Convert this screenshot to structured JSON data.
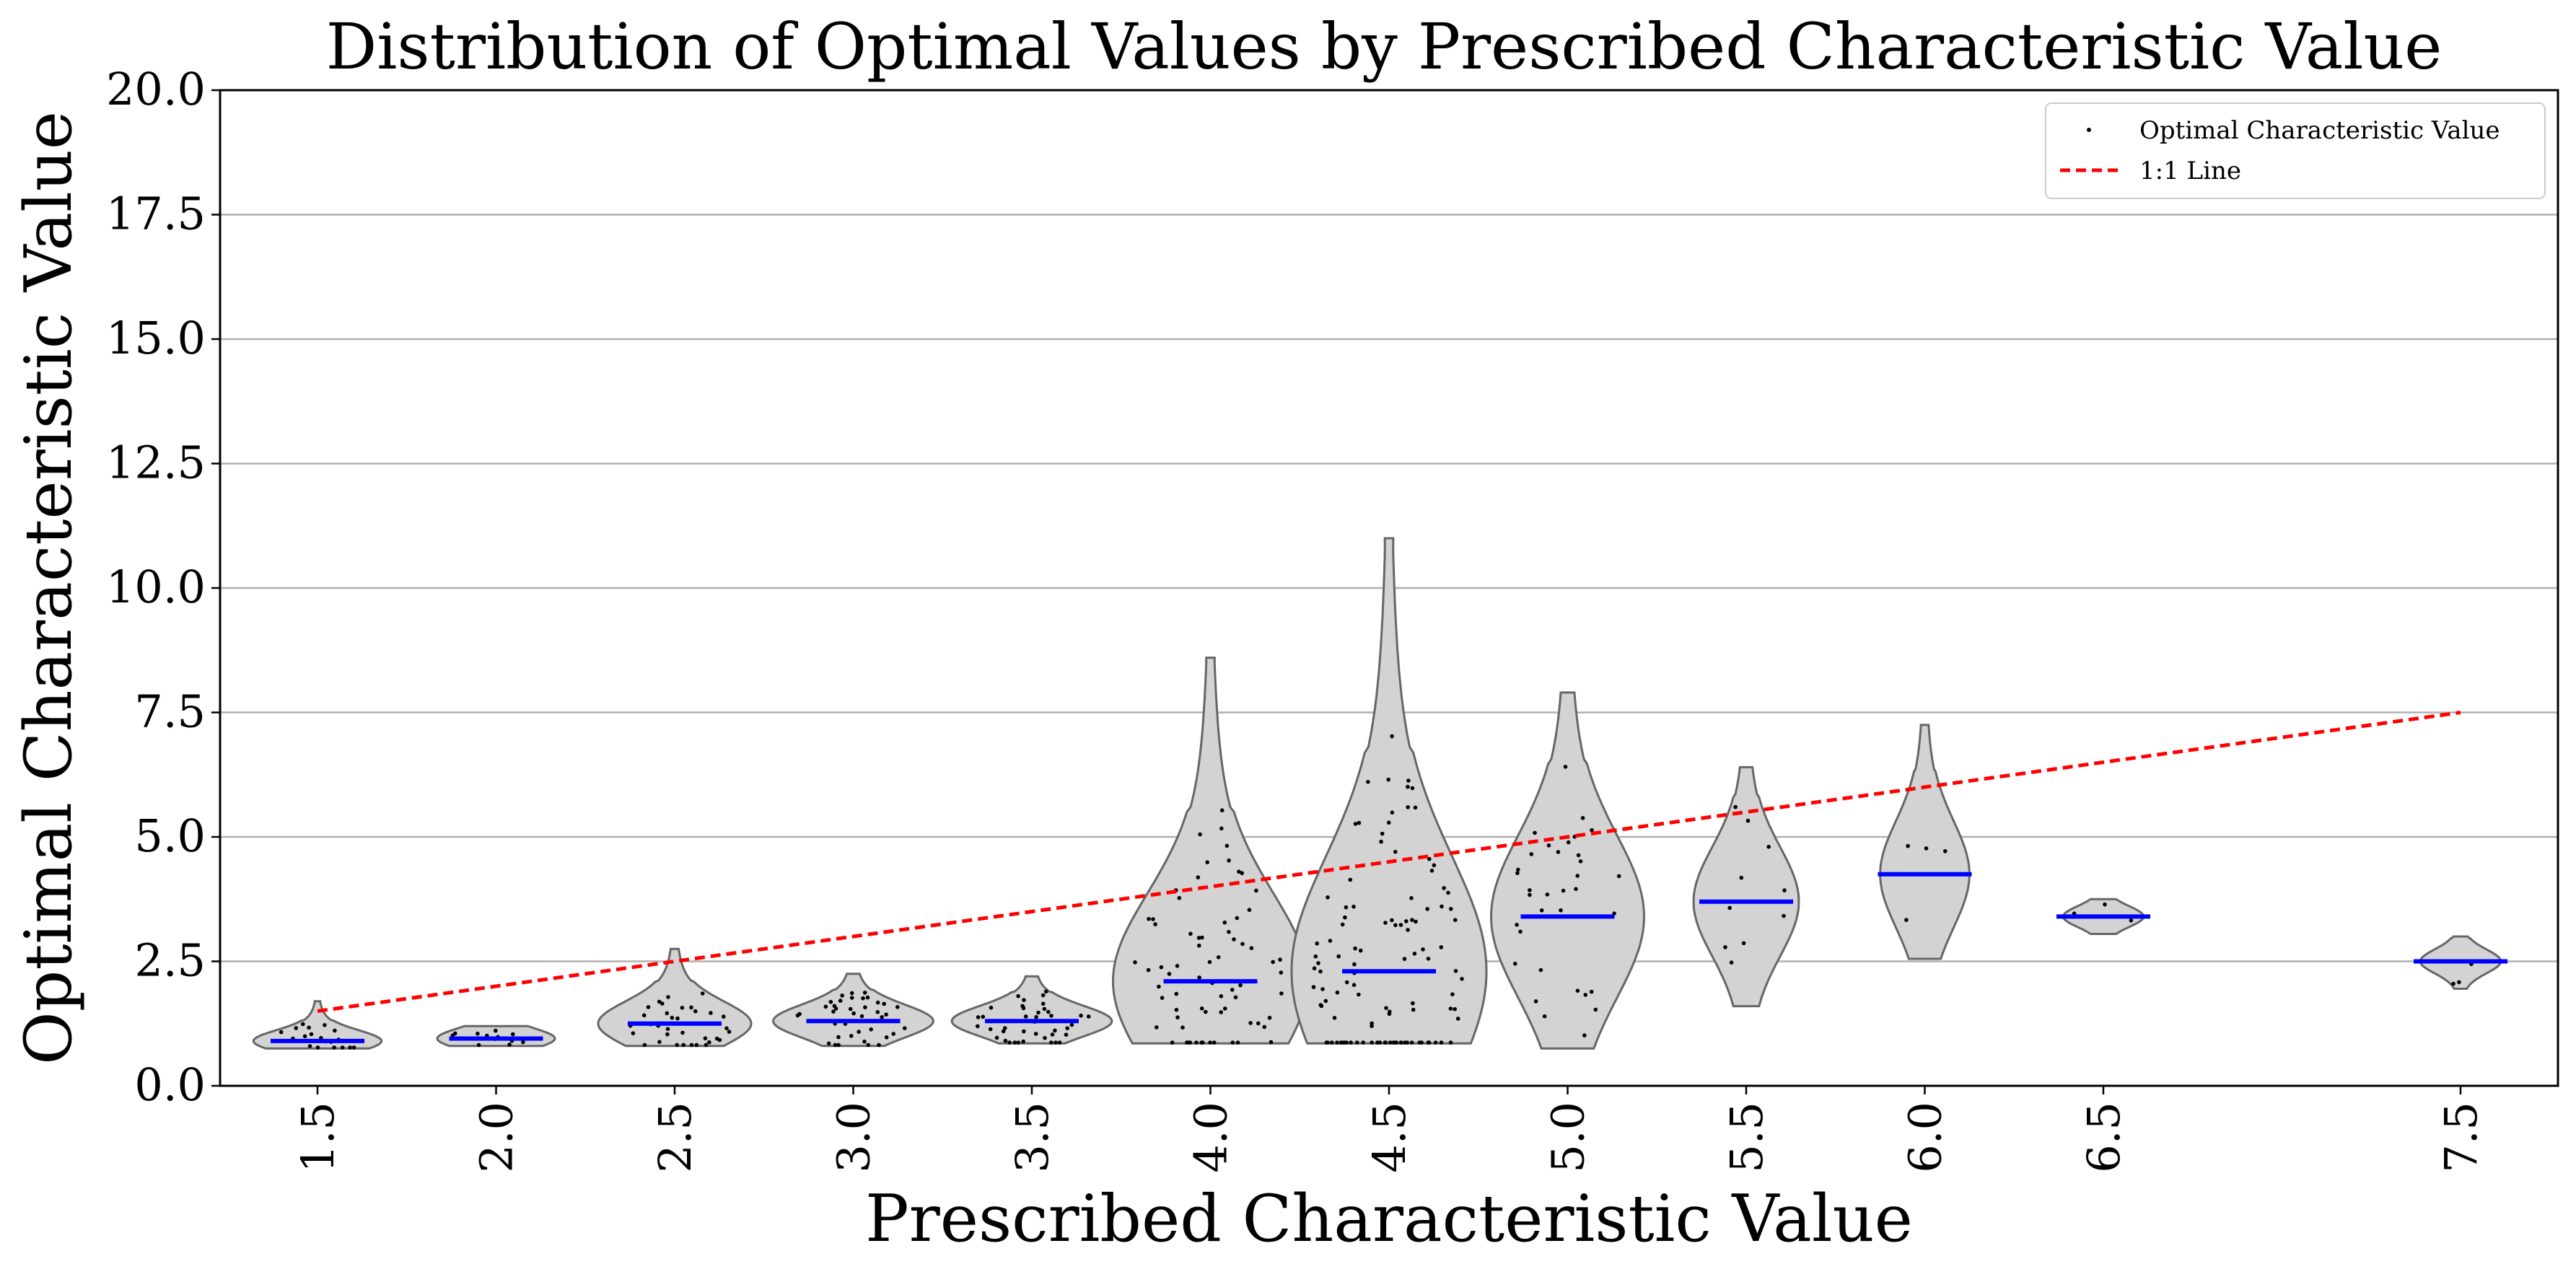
{
  "chart_data": {
    "type": "violin",
    "title": "Distribution of Optimal Values by Prescribed Characteristic Value",
    "xlabel": "Prescribed Characteristic Value",
    "ylabel": "Optimal Characteristic Value",
    "ylim": [
      0,
      20
    ],
    "yticks": [
      "0.0",
      "2.5",
      "5.0",
      "7.5",
      "10.0",
      "12.5",
      "15.0",
      "17.5",
      "20.0"
    ],
    "grid": "horizontal",
    "legend_position": "top-right",
    "legend": [
      {
        "label": "Optimal Characteristic Value",
        "marker": "dot"
      },
      {
        "label": "1:1 Line",
        "marker": "dashed-line"
      }
    ],
    "colors": {
      "violin_fill": "#d3d3d3",
      "violin_edge": "#666666",
      "median": "#0000ff",
      "reference_line": "#ff0000",
      "points": "#000000",
      "grid": "#b0b0b0"
    },
    "categories": [
      "1.5",
      "2.0",
      "2.5",
      "3.0",
      "3.5",
      "4.0",
      "4.5",
      "5.0",
      "5.5",
      "6.0",
      "6.5",
      "7.5"
    ],
    "violins": [
      {
        "category": "1.5",
        "min": 0.75,
        "max": 1.7,
        "median": 0.9,
        "n": 20
      },
      {
        "category": "2.0",
        "min": 0.8,
        "max": 1.2,
        "median": 0.95,
        "n": 15
      },
      {
        "category": "2.5",
        "min": 0.8,
        "max": 2.75,
        "median": 1.25,
        "n": 35
      },
      {
        "category": "3.0",
        "min": 0.8,
        "max": 2.25,
        "median": 1.3,
        "n": 40
      },
      {
        "category": "3.5",
        "min": 0.85,
        "max": 2.2,
        "median": 1.3,
        "n": 40
      },
      {
        "category": "4.0",
        "min": 0.85,
        "max": 8.6,
        "median": 2.1,
        "n": 70
      },
      {
        "category": "4.5",
        "min": 0.85,
        "max": 11.0,
        "median": 2.3,
        "n": 110
      },
      {
        "category": "5.0",
        "min": 0.75,
        "max": 7.9,
        "median": 3.4,
        "n": 35
      },
      {
        "category": "5.5",
        "min": 1.6,
        "max": 6.4,
        "median": 3.7,
        "n": 10
      },
      {
        "category": "6.0",
        "min": 2.55,
        "max": 7.25,
        "median": 4.25,
        "n": 5
      },
      {
        "category": "6.5",
        "min": 3.05,
        "max": 3.75,
        "median": 3.4,
        "n": 3
      },
      {
        "category": "7.5",
        "min": 1.95,
        "max": 3.0,
        "median": 2.5,
        "n": 3
      }
    ],
    "reference_line": {
      "label": "1:1 Line",
      "x": [
        1.5,
        7.5
      ],
      "y": [
        1.5,
        7.5
      ]
    }
  }
}
